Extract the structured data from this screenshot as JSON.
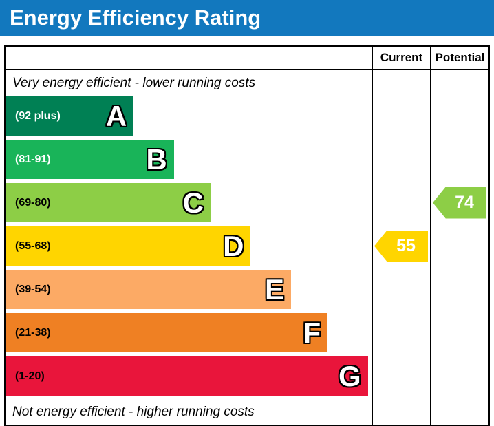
{
  "title_bar": {
    "title": "Energy Efficiency Rating",
    "background": "#1278be"
  },
  "table_header": {
    "current": "Current",
    "potential": "Potential"
  },
  "chart_data": {
    "type": "bar",
    "title": "Energy Efficiency Rating",
    "top_note": "Very energy efficient - lower running costs",
    "bottom_note": "Not energy efficient - higher running costs",
    "bands": [
      {
        "letter": "A",
        "range_label": "(92 plus)",
        "color": "#008054",
        "label_color": "#ffffff",
        "width_pct": 35
      },
      {
        "letter": "B",
        "range_label": "(81-91)",
        "color": "#19b459",
        "label_color": "#ffffff",
        "width_pct": 46
      },
      {
        "letter": "C",
        "range_label": "(69-80)",
        "color": "#8dce46",
        "label_color": "#000000",
        "width_pct": 56
      },
      {
        "letter": "D",
        "range_label": "(55-68)",
        "color": "#ffd500",
        "label_color": "#000000",
        "width_pct": 67
      },
      {
        "letter": "E",
        "range_label": "(39-54)",
        "color": "#fcaa65",
        "label_color": "#000000",
        "width_pct": 78
      },
      {
        "letter": "F",
        "range_label": "(21-38)",
        "color": "#ef8023",
        "label_color": "#000000",
        "width_pct": 88
      },
      {
        "letter": "G",
        "range_label": "(1-20)",
        "color": "#e9153b",
        "label_color": "#000000",
        "width_pct": 99
      }
    ],
    "current": {
      "value": 55,
      "band": "D",
      "color": "#ffd500"
    },
    "potential": {
      "value": 74,
      "band": "C",
      "color": "#8dce46"
    }
  }
}
